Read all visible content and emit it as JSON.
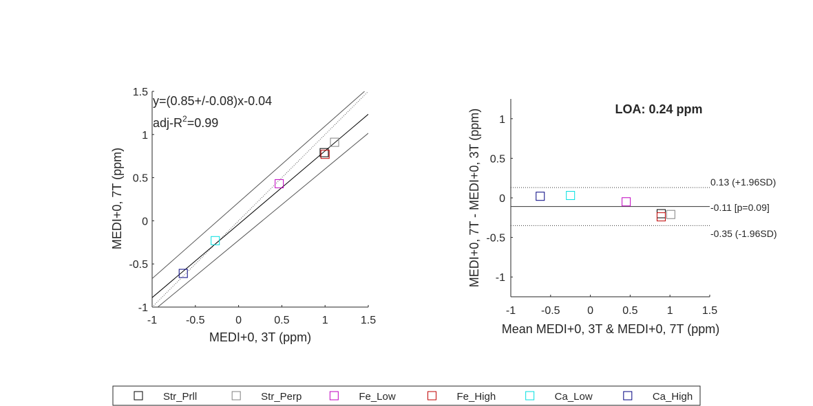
{
  "chart_data": [
    {
      "type": "scatter",
      "xlabel": "MEDI+0, 3T (ppm)",
      "ylabel": "MEDI+0, 7T (ppm)",
      "xlim": [
        -1,
        1.5
      ],
      "ylim": [
        -1,
        1.5
      ],
      "xticks": [
        "-1",
        "-0.5",
        "0",
        "0.5",
        "1",
        "1.5"
      ],
      "yticks": [
        "-1",
        "-0.5",
        "0",
        "0.5",
        "1",
        "1.5"
      ],
      "fit_equation": "y=(0.85+/-0.08)x-0.04",
      "fit_r2_label": "adj-R",
      "fit_r2_sup": "2",
      "fit_r2_value": "=0.99",
      "fit": {
        "slope": 0.85,
        "slope_ci": 0.08,
        "intercept": -0.04
      },
      "series": [
        {
          "name": "Str_Prll",
          "x": 0.99,
          "y": 0.79
        },
        {
          "name": "Str_Perp",
          "x": 1.11,
          "y": 0.91
        },
        {
          "name": "Fe_Low",
          "x": 0.47,
          "y": 0.43
        },
        {
          "name": "Fe_High",
          "x": 1.0,
          "y": 0.77
        },
        {
          "name": "Ca_Low",
          "x": -0.27,
          "y": -0.23
        },
        {
          "name": "Ca_High",
          "x": -0.64,
          "y": -0.61
        }
      ]
    },
    {
      "type": "scatter",
      "title": "LOA: 0.24 ppm",
      "xlabel": "Mean MEDI+0, 3T & MEDI+0, 7T (ppm)",
      "ylabel": "MEDI+0, 7T - MEDI+0, 3T (ppm)",
      "xlim": [
        -1,
        1.5
      ],
      "ylim": [
        -1.25,
        1.25
      ],
      "xticks": [
        "-1",
        "-0.5",
        "0",
        "0.5",
        "1",
        "1.5"
      ],
      "yticks": [
        "-1",
        "-0.5",
        "0",
        "0.5",
        "1"
      ],
      "mean_diff": -0.11,
      "mean_label": "-0.11 [p=0.09]",
      "upper_loa": 0.13,
      "upper_label": "0.13 (+1.96SD)",
      "lower_loa": -0.35,
      "lower_label": "-0.35 (-1.96SD)",
      "series": [
        {
          "name": "Str_Prll",
          "x": 0.89,
          "y": -0.2
        },
        {
          "name": "Str_Perp",
          "x": 1.01,
          "y": -0.21
        },
        {
          "name": "Fe_Low",
          "x": 0.45,
          "y": -0.05
        },
        {
          "name": "Fe_High",
          "x": 0.89,
          "y": -0.24
        },
        {
          "name": "Ca_Low",
          "x": -0.25,
          "y": 0.03
        },
        {
          "name": "Ca_High",
          "x": -0.63,
          "y": 0.02
        }
      ]
    }
  ],
  "legend": [
    {
      "name": "Str_Prll",
      "color": "#000000"
    },
    {
      "name": "Str_Perp",
      "color": "#808080"
    },
    {
      "name": "Fe_Low",
      "color": "#c000c0"
    },
    {
      "name": "Fe_High",
      "color": "#c00000"
    },
    {
      "name": "Ca_Low",
      "color": "#00e0e0"
    },
    {
      "name": "Ca_High",
      "color": "#000080"
    }
  ]
}
